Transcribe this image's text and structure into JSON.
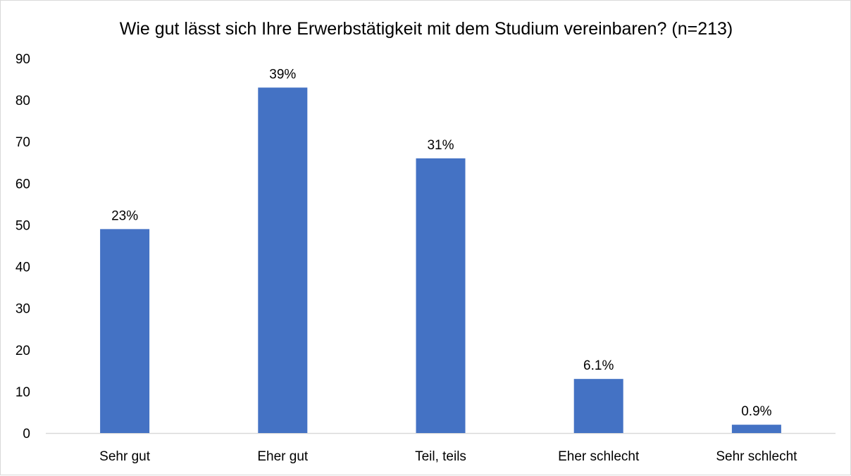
{
  "chart_data": {
    "type": "bar",
    "title": "Wie gut lässt sich Ihre Erwerbstätigkeit mit dem Studium vereinbaren? (n=213)",
    "xlabel": "",
    "ylabel": "",
    "categories": [
      "Sehr gut",
      "Eher gut",
      "Teil, teils",
      "Eher schlecht",
      "Sehr schlecht"
    ],
    "values": [
      49,
      83,
      66,
      13,
      2
    ],
    "data_labels": [
      "23%",
      "39%",
      "31%",
      "6.1%",
      "0.9%"
    ],
    "ylim": [
      0,
      90
    ],
    "yticks": [
      "0",
      "10",
      "20",
      "30",
      "40",
      "50",
      "60",
      "70",
      "80",
      "90"
    ],
    "grid": false,
    "legend": "none",
    "bar_color": "#4472C4"
  }
}
